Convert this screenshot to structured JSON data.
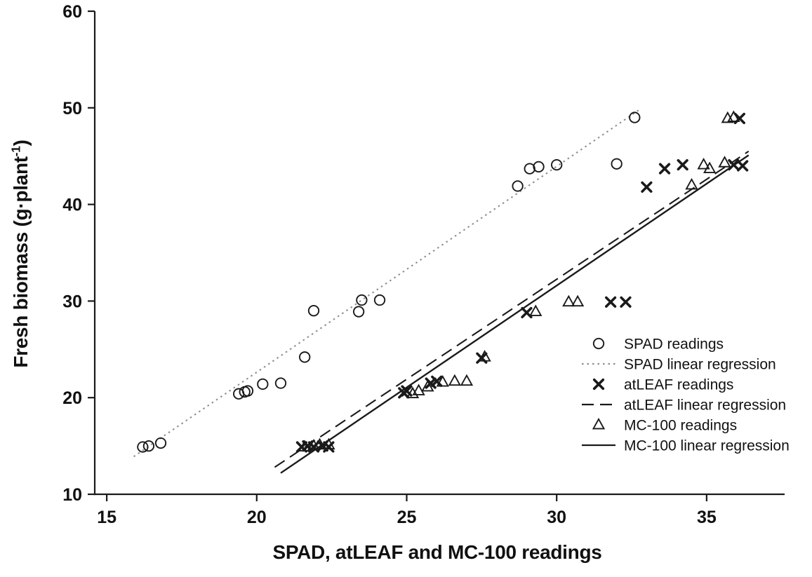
{
  "chart_data": {
    "type": "scatter",
    "title": "",
    "xlabel": "SPAD, atLEAF and MC-100 readings",
    "ylabel": "Fresh biomass (g·plant⁻¹)",
    "ylabel_parts": {
      "pre": "Fresh biomass (g·plant",
      "sup": "-1",
      "post": ")"
    },
    "xlim": [
      14.6,
      37.6
    ],
    "ylim": [
      10,
      60
    ],
    "xticks": [
      15,
      20,
      25,
      30,
      35
    ],
    "yticks": [
      10,
      20,
      30,
      40,
      50,
      60
    ],
    "grid": false,
    "legend_position": "inside-lower-right",
    "colors": {
      "marker": "#1a1a1a",
      "axis": "#1a1a1a",
      "text": "#111111",
      "regression_dotted": "#8f8f8f"
    },
    "series": [
      {
        "name": "SPAD readings",
        "marker": "circle",
        "points": [
          [
            16.2,
            14.9
          ],
          [
            16.4,
            15.0
          ],
          [
            16.8,
            15.3
          ],
          [
            19.4,
            20.4
          ],
          [
            19.6,
            20.6
          ],
          [
            19.7,
            20.7
          ],
          [
            20.2,
            21.4
          ],
          [
            20.8,
            21.5
          ],
          [
            21.6,
            24.2
          ],
          [
            21.9,
            29.0
          ],
          [
            23.4,
            28.9
          ],
          [
            23.5,
            30.1
          ],
          [
            24.1,
            30.1
          ],
          [
            28.7,
            41.9
          ],
          [
            29.1,
            43.7
          ],
          [
            29.4,
            43.9
          ],
          [
            30.0,
            44.1
          ],
          [
            32.0,
            44.2
          ],
          [
            32.6,
            49.0
          ]
        ]
      },
      {
        "name": "atLEAF readings",
        "marker": "x",
        "points": [
          [
            21.5,
            14.9
          ],
          [
            21.7,
            15.0
          ],
          [
            21.9,
            14.9
          ],
          [
            22.2,
            15.0
          ],
          [
            22.4,
            14.9
          ],
          [
            24.9,
            20.5
          ],
          [
            25.0,
            20.7
          ],
          [
            25.8,
            21.5
          ],
          [
            26.0,
            21.7
          ],
          [
            27.5,
            24.1
          ],
          [
            29.0,
            28.8
          ],
          [
            31.8,
            29.9
          ],
          [
            32.3,
            29.9
          ],
          [
            33.0,
            41.8
          ],
          [
            33.6,
            43.7
          ],
          [
            34.2,
            44.1
          ],
          [
            35.9,
            44.1
          ],
          [
            36.2,
            44.0
          ],
          [
            36.1,
            48.9
          ]
        ]
      },
      {
        "name": "MC-100 readings",
        "marker": "triangle",
        "points": [
          [
            21.6,
            14.9
          ],
          [
            21.9,
            15.0
          ],
          [
            22.1,
            15.1
          ],
          [
            22.4,
            15.1
          ],
          [
            25.2,
            20.4
          ],
          [
            25.4,
            20.7
          ],
          [
            25.7,
            21.1
          ],
          [
            26.2,
            21.6
          ],
          [
            26.6,
            21.7
          ],
          [
            27.0,
            21.7
          ],
          [
            27.6,
            24.2
          ],
          [
            29.3,
            28.9
          ],
          [
            30.4,
            29.9
          ],
          [
            30.7,
            29.9
          ],
          [
            34.5,
            42.0
          ],
          [
            34.9,
            44.1
          ],
          [
            35.1,
            43.7
          ],
          [
            35.6,
            44.3
          ],
          [
            35.7,
            48.9
          ],
          [
            35.9,
            49.0
          ]
        ]
      }
    ],
    "regressions": [
      {
        "name": "SPAD linear regression",
        "style": "dotted",
        "x1": 15.9,
        "y1": 13.9,
        "x2": 32.8,
        "y2": 49.9
      },
      {
        "name": "atLEAF linear regression",
        "style": "dashed",
        "x1": 20.6,
        "y1": 12.8,
        "x2": 36.4,
        "y2": 45.5
      },
      {
        "name": "MC-100 linear regression",
        "style": "solid",
        "x1": 20.8,
        "y1": 12.2,
        "x2": 36.4,
        "y2": 45.1
      }
    ],
    "legend": [
      {
        "label": "SPAD readings",
        "marker": "circle"
      },
      {
        "label": "SPAD linear regression",
        "marker": "dotted-line"
      },
      {
        "label": "atLEAF readings",
        "marker": "x"
      },
      {
        "label": "atLEAF linear regression",
        "marker": "dashed-line"
      },
      {
        "label": "MC-100 readings",
        "marker": "triangle"
      },
      {
        "label": "MC-100 linear regression",
        "marker": "solid-line"
      }
    ]
  }
}
